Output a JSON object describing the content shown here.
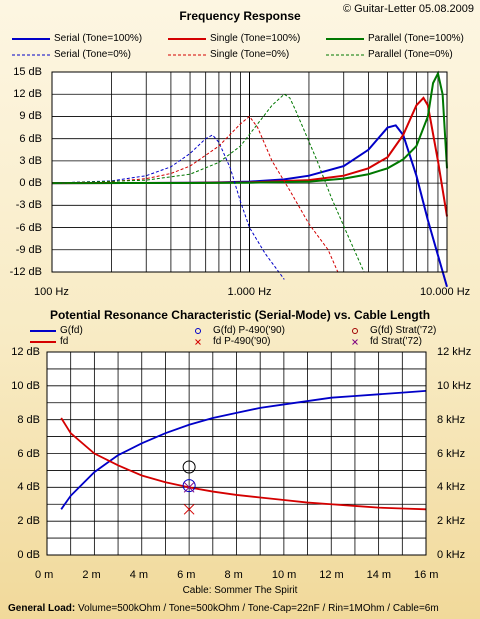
{
  "copyright": "© Guitar-Letter 05.08.2009",
  "footer": {
    "label": "General Load:",
    "text": " Volume=500kOhm / Tone=500kOhm / Tone-Cap=22nF / Rin=1MOhm / Cable=6m"
  },
  "chart_data": [
    {
      "type": "line",
      "title": "Frequency Response",
      "x_scale": "log",
      "xlim": [
        100,
        10000
      ],
      "ylim": [
        -12,
        15
      ],
      "xtick_labels": [
        "100 Hz",
        "1.000 Hz",
        "10.000 Hz"
      ],
      "xtick_values": [
        100,
        1000,
        10000
      ],
      "ytick_labels": [
        "15 dB",
        "12 dB",
        "9 dB",
        "6 dB",
        "3 dB",
        "0 dB",
        "-3 dB",
        "-6 dB",
        "-9 dB",
        "-12 dB"
      ],
      "ytick_values": [
        15,
        12,
        9,
        6,
        3,
        0,
        -3,
        -6,
        -9,
        -12
      ],
      "grid": true,
      "legend_position": "top",
      "series": [
        {
          "name": "Serial (Tone=100%)",
          "color": "#0000c8",
          "dash": false,
          "x": [
            100,
            300,
            500,
            700,
            1000,
            1500,
            2000,
            3000,
            4000,
            5000,
            5500,
            6000,
            7000,
            8000,
            10000
          ],
          "y": [
            0,
            0.02,
            0.05,
            0.1,
            0.2,
            0.5,
            1,
            2.3,
            4.5,
            7.5,
            7.8,
            6.5,
            1.0,
            -5,
            -14
          ]
        },
        {
          "name": "Single (Tone=100%)",
          "color": "#d40000",
          "dash": false,
          "x": [
            100,
            500,
            1000,
            2000,
            3000,
            4000,
            5000,
            6000,
            7000,
            7600,
            8000,
            9000,
            10000
          ],
          "y": [
            0,
            0.03,
            0.1,
            0.4,
            1.0,
            2.0,
            3.5,
            6.5,
            10.5,
            11.5,
            10.5,
            3.0,
            -4.5
          ]
        },
        {
          "name": "Parallel (Tone=100%)",
          "color": "#007800",
          "dash": false,
          "x": [
            100,
            500,
            1000,
            2000,
            3000,
            4000,
            5000,
            6000,
            7000,
            8000,
            8500,
            9000,
            9500,
            10000
          ],
          "y": [
            0,
            0.02,
            0.05,
            0.2,
            0.6,
            1.2,
            2.0,
            3.2,
            5.0,
            9.0,
            13.5,
            14.8,
            12.0,
            2.0
          ]
        },
        {
          "name": "Serial (Tone=0%)",
          "color": "#0000c8",
          "dash": true,
          "x": [
            100,
            200,
            300,
            400,
            500,
            600,
            650,
            700,
            800,
            900,
            1000,
            1200,
            1500
          ],
          "y": [
            0,
            0.3,
            1.0,
            2.2,
            4.0,
            6.0,
            6.5,
            5.5,
            2.0,
            -2.5,
            -6.0,
            -9.5,
            -13
          ]
        },
        {
          "name": "Single (Tone=0%)",
          "color": "#d40000",
          "dash": true,
          "x": [
            100,
            200,
            300,
            400,
            500,
            700,
            900,
            1000,
            1100,
            1300,
            1600,
            2000,
            2500,
            2800
          ],
          "y": [
            0,
            0.2,
            0.6,
            1.3,
            2.3,
            5.0,
            8.0,
            9.0,
            7.5,
            3.0,
            -1.0,
            -5.5,
            -9.0,
            -12
          ]
        },
        {
          "name": "Parallel (Tone=0%)",
          "color": "#007800",
          "dash": true,
          "x": [
            100,
            300,
            500,
            700,
            900,
            1100,
            1300,
            1500,
            1600,
            1700,
            1900,
            2200,
            2600,
            3200,
            3800
          ],
          "y": [
            0,
            0.4,
            1.2,
            2.8,
            5.0,
            8.0,
            10.5,
            12.0,
            11.5,
            10.0,
            7.0,
            3.0,
            -2.0,
            -7.5,
            -12
          ]
        }
      ]
    },
    {
      "type": "line",
      "title": "Potential Resonance Characteristic (Serial-Mode) vs. Cable Length",
      "xlabel": "Cable: Sommer The Spirit",
      "xlim": [
        0,
        16
      ],
      "ylim": [
        0,
        12
      ],
      "y2lim": [
        0,
        12
      ],
      "xtick_labels": [
        "0 m",
        "2 m",
        "4 m",
        "6 m",
        "8 m",
        "10 m",
        "12 m",
        "14 m",
        "16 m"
      ],
      "xtick_values": [
        0,
        2,
        4,
        6,
        8,
        10,
        12,
        14,
        16
      ],
      "ytick_labels": [
        "12 dB",
        "10 dB",
        "8 dB",
        "6 dB",
        "4 dB",
        "2 dB",
        "0 dB"
      ],
      "ytick_values": [
        12,
        10,
        8,
        6,
        4,
        2,
        0
      ],
      "y2tick_labels": [
        "12 kHz",
        "10 kHz",
        "8 kHz",
        "6 kHz",
        "4 kHz",
        "2 kHz",
        "0 kHz"
      ],
      "y2tick_values": [
        12,
        10,
        8,
        6,
        4,
        2,
        0
      ],
      "grid": true,
      "legend_position": "top",
      "series": [
        {
          "name": "G(fd)",
          "color": "#0000c8",
          "marker": "line",
          "x": [
            0.6,
            1,
            2,
            3,
            4,
            5,
            6,
            7,
            8,
            9,
            10,
            11,
            12,
            13,
            14,
            15,
            16
          ],
          "y": [
            2.7,
            3.5,
            4.9,
            5.9,
            6.6,
            7.2,
            7.7,
            8.1,
            8.4,
            8.7,
            8.9,
            9.1,
            9.3,
            9.4,
            9.5,
            9.6,
            9.7
          ]
        },
        {
          "name": "fd",
          "color": "#d40000",
          "marker": "line",
          "x": [
            0.6,
            1,
            2,
            3,
            4,
            5,
            6,
            7,
            8,
            9,
            10,
            11,
            12,
            13,
            14,
            15,
            16
          ],
          "y": [
            8.1,
            7.2,
            6.0,
            5.3,
            4.7,
            4.3,
            4.0,
            3.75,
            3.55,
            3.4,
            3.25,
            3.1,
            3.0,
            2.9,
            2.8,
            2.75,
            2.7
          ]
        },
        {
          "name": "G(fd) P-490('90)",
          "color": "#0000c8",
          "marker": "circle",
          "x": [
            6
          ],
          "y": [
            4.1
          ]
        },
        {
          "name": "fd P-490('90)",
          "color": "#d40000",
          "marker": "x",
          "x": [
            6
          ],
          "y": [
            2.7
          ]
        },
        {
          "name": "G(fd) Strat('72)",
          "color": "#000000",
          "marker": "circle",
          "x": [
            6
          ],
          "y": [
            5.2
          ]
        },
        {
          "name": "fd Strat('72)",
          "color": "#800080",
          "marker": "x",
          "x": [
            6
          ],
          "y": [
            4.0
          ]
        }
      ]
    }
  ]
}
